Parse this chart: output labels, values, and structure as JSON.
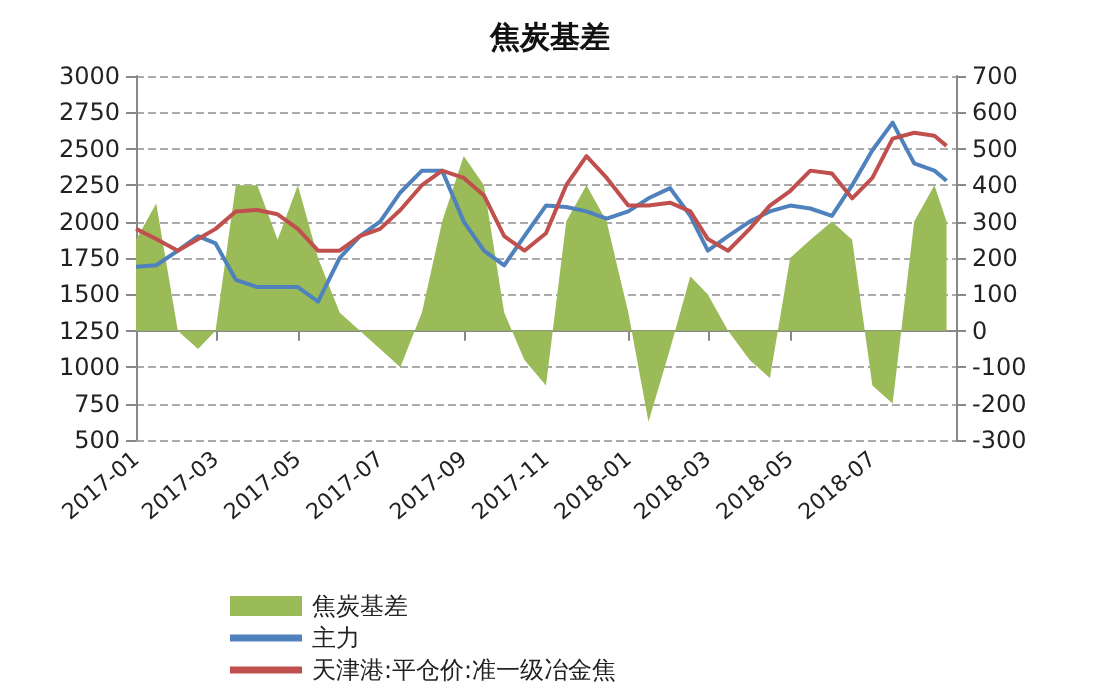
{
  "chart_data": {
    "type": "line",
    "title": "焦炭基差",
    "x": [
      "2017-01-01",
      "2017-01-16",
      "2017-02-01",
      "2017-02-16",
      "2017-03-01",
      "2017-03-16",
      "2017-04-01",
      "2017-04-16",
      "2017-05-01",
      "2017-05-16",
      "2017-06-01",
      "2017-06-16",
      "2017-07-01",
      "2017-07-16",
      "2017-08-01",
      "2017-08-16",
      "2017-09-01",
      "2017-09-16",
      "2017-10-01",
      "2017-10-16",
      "2017-11-01",
      "2017-11-16",
      "2017-12-01",
      "2017-12-16",
      "2018-01-01",
      "2018-01-16",
      "2018-02-01",
      "2018-02-16",
      "2018-03-01",
      "2018-03-16",
      "2018-04-01",
      "2018-04-16",
      "2018-05-01",
      "2018-05-16",
      "2018-06-01",
      "2018-06-16",
      "2018-07-01",
      "2018-07-16",
      "2018-08-01",
      "2018-08-16",
      "2018-08-25"
    ],
    "series": [
      {
        "name": "焦炭基差",
        "type": "area",
        "axis": "y2",
        "color": "#9bbb59",
        "values": [
          250,
          350,
          0,
          -50,
          0,
          400,
          400,
          250,
          400,
          200,
          50,
          0,
          -50,
          -100,
          50,
          300,
          480,
          400,
          50,
          -80,
          -150,
          300,
          400,
          300,
          50,
          -250,
          -50,
          150,
          100,
          0,
          -80,
          -130,
          200,
          250,
          300,
          250,
          -150,
          -200,
          300,
          400,
          300
        ]
      },
      {
        "name": "主力",
        "color": "#4f81bd",
        "values": [
          1690,
          1700,
          1800,
          1900,
          1850,
          1600,
          1550,
          1550,
          1550,
          1450,
          1750,
          1900,
          2000,
          2200,
          2350,
          2350,
          2000,
          1800,
          1700,
          1900,
          2110,
          2100,
          2070,
          2020,
          2070,
          2160,
          2230,
          2040,
          1800,
          1900,
          2000,
          2070,
          2110,
          2090,
          2040,
          2250,
          2490,
          2680,
          2400,
          2350,
          2280
        ]
      },
      {
        "name": "天津港:平仓价:准一级冶金焦",
        "color": "#c0504d",
        "values": [
          1950,
          1880,
          1800,
          1880,
          1950,
          2070,
          2080,
          2050,
          1950,
          1800,
          1800,
          1900,
          1950,
          2080,
          2250,
          2350,
          2300,
          2180,
          1900,
          1800,
          1920,
          2250,
          2450,
          2300,
          2110,
          2110,
          2130,
          2070,
          1880,
          1800,
          1950,
          2110,
          2210,
          2350,
          2330,
          2160,
          2300,
          2570,
          2610,
          2590,
          2520
        ]
      }
    ],
    "xlim": [
      "2017-01",
      "2018-09"
    ],
    "xticks": [
      "2017-01",
      "2017-03",
      "2017-05",
      "2017-07",
      "2017-09",
      "2017-11",
      "2018-01",
      "2018-03",
      "2018-05",
      "2018-07"
    ],
    "ylim": [
      500,
      3000
    ],
    "yticks": [
      500,
      750,
      1000,
      1250,
      1500,
      1750,
      2000,
      2250,
      2500,
      2750,
      3000
    ],
    "y2lim": [
      -300,
      700
    ],
    "y2ticks": [
      -300,
      -200,
      -100,
      0,
      100,
      200,
      300,
      400,
      500,
      600,
      700
    ],
    "grid": "y",
    "legend": "bottom",
    "marker": "none",
    "line_style": "solid"
  }
}
